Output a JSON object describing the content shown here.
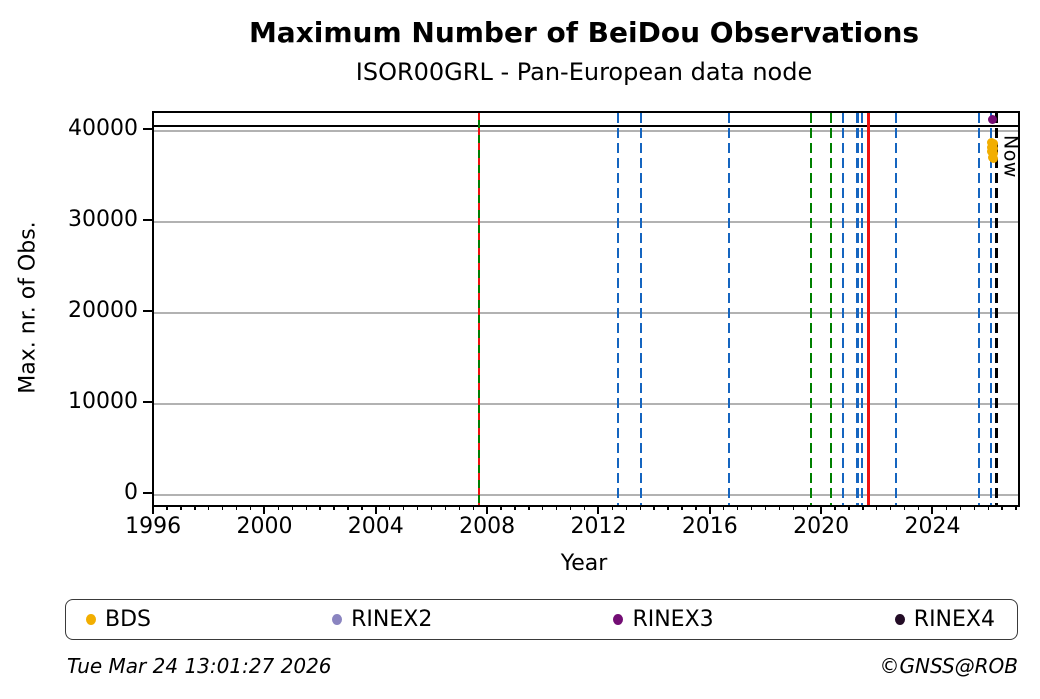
{
  "header": {
    "title": "Maximum Number of BeiDou Observations",
    "subtitle": "ISOR00GRL - Pan-European data node"
  },
  "footer": {
    "timestamp": "Tue Mar 24 13:01:27 2026",
    "credit": "©GNSS@ROB"
  },
  "chart_data": {
    "type": "scatter",
    "title": "Maximum Number of BeiDou Observations",
    "subtitle": "ISOR00GRL - Pan-European data node",
    "xlabel": "Year",
    "ylabel": "Max. nr. of Obs.",
    "xlim": [
      1995.96,
      2027.0
    ],
    "ylim": [
      -1100,
      42000
    ],
    "x_major_ticks": [
      1996,
      2000,
      2004,
      2008,
      2012,
      2016,
      2020,
      2024
    ],
    "x_minor_step": 0.5,
    "y_ticks": [
      0,
      10000,
      20000,
      30000,
      40000
    ],
    "grid": "horizontal-gray",
    "grid_color": "#b2b2b2",
    "legend_position": "bottom-expanded",
    "hline": {
      "value": 40600,
      "color": "#000000",
      "style": "solid"
    },
    "now_line": {
      "year": 2026.22,
      "label": "Now",
      "color": "#000000",
      "style": "dashed"
    },
    "event_lines": [
      {
        "year": 2007.64,
        "color": "#007c00",
        "style": "solid",
        "overlay_color": "#ee1111",
        "overlay_style": "dashed"
      },
      {
        "year": 2012.63,
        "color": "#1565c0",
        "style": "dashed"
      },
      {
        "year": 2013.46,
        "color": "#1565c0",
        "style": "dashed"
      },
      {
        "year": 2016.62,
        "color": "#1565c0",
        "style": "dashed"
      },
      {
        "year": 2019.56,
        "color": "#008000",
        "style": "dashed"
      },
      {
        "year": 2020.28,
        "color": "#008000",
        "style": "dashed"
      },
      {
        "year": 2020.71,
        "color": "#1565c0",
        "style": "dashed"
      },
      {
        "year": 2021.24,
        "color": "#1565c0",
        "style": "dashed"
      },
      {
        "year": 2021.4,
        "color": "#1565c0",
        "style": "dashed"
      },
      {
        "year": 2021.63,
        "color": "#ee1111",
        "style": "solid"
      },
      {
        "year": 2022.62,
        "color": "#1565c0",
        "style": "dashed"
      },
      {
        "year": 2025.6,
        "color": "#1565c0",
        "style": "dashed"
      },
      {
        "year": 2026.03,
        "color": "#1565c0",
        "style": "dashed"
      }
    ],
    "series": [
      {
        "name": "BDS",
        "color": "#f2ae00",
        "points": [
          [
            2026.04,
            38750
          ],
          [
            2026.11,
            38600
          ],
          [
            2026.05,
            38250
          ],
          [
            2026.12,
            38100
          ],
          [
            2026.05,
            37750
          ],
          [
            2026.11,
            37550
          ],
          [
            2026.07,
            37150
          ],
          [
            2026.12,
            37000
          ]
        ]
      },
      {
        "name": "RINEX2",
        "color": "#8a84c0",
        "points": []
      },
      {
        "name": "RINEX3",
        "color": "#730d74",
        "points": [
          [
            2026.1,
            41250
          ]
        ]
      },
      {
        "name": "RINEX4",
        "color": "#230c26",
        "points": []
      }
    ]
  }
}
